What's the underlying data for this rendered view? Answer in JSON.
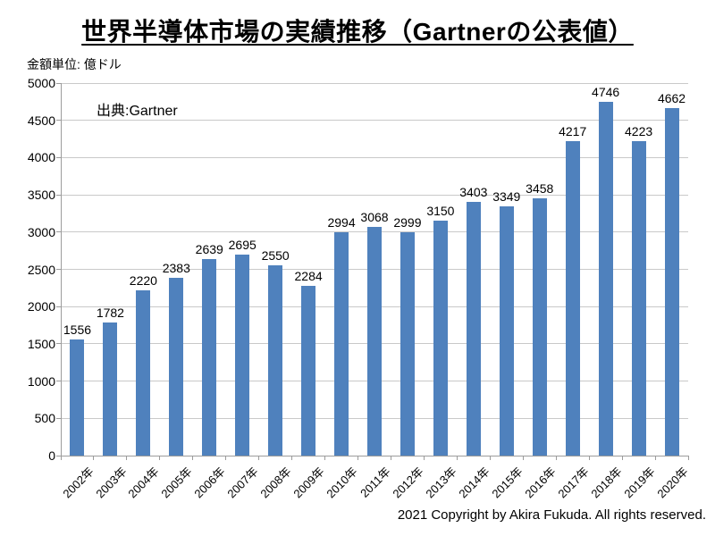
{
  "title": "世界半導体市場の実績推移（Gartnerの公表値）",
  "unit_label": "金額単位: 億ドル",
  "source_label": "出典:Gartner",
  "copyright": "2021 Copyright by Akira Fukuda. All rights reserved.",
  "colors": {
    "bar": "#4F81BD",
    "gridline": "#C9C9C9",
    "axis": "#9C9C9C",
    "text": "#000000",
    "background": "#FFFFFF"
  },
  "chart_data": {
    "type": "bar",
    "title": "世界半導体市場の実績推移（Gartnerの公表値）",
    "categories": [
      "2002年",
      "2003年",
      "2004年",
      "2005年",
      "2006年",
      "2007年",
      "2008年",
      "2009年",
      "2010年",
      "2011年",
      "2012年",
      "2013年",
      "2014年",
      "2015年",
      "2016年",
      "2017年",
      "2018年",
      "2019年",
      "2020年"
    ],
    "values": [
      1556,
      1782,
      2220,
      2383,
      2639,
      2695,
      2550,
      2284,
      2994,
      3068,
      2999,
      3150,
      3403,
      3349,
      3458,
      4217,
      4746,
      4223,
      4662
    ],
    "xlabel": "",
    "ylabel": "金額単位: 億ドル",
    "ylim": [
      0,
      5000
    ],
    "ytick_step": 500,
    "grid": true,
    "legend": false,
    "data_labels": true,
    "annotation": "出典:Gartner"
  }
}
